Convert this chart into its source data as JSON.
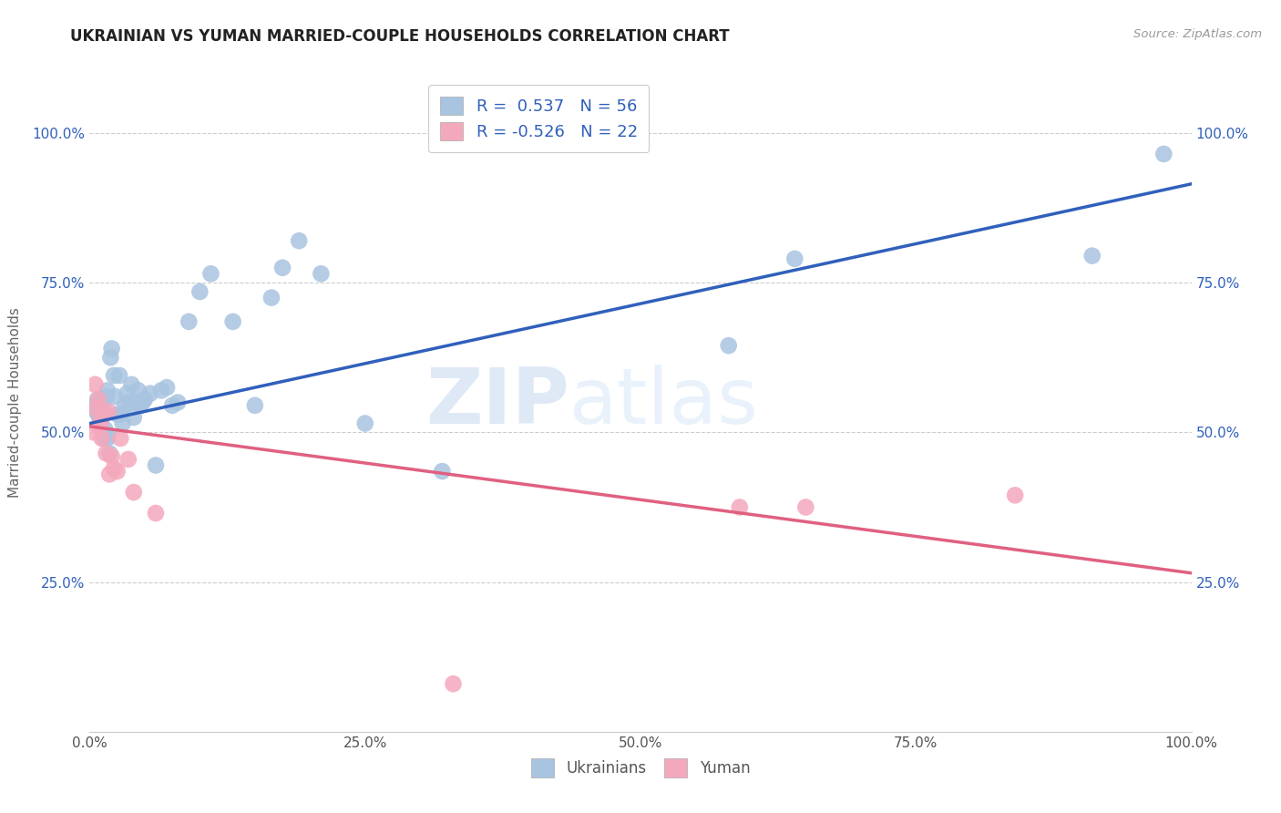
{
  "title": "UKRAINIAN VS YUMAN MARRIED-COUPLE HOUSEHOLDS CORRELATION CHART",
  "source": "Source: ZipAtlas.com",
  "ylabel": "Married-couple Households",
  "watermark_part1": "ZIP",
  "watermark_part2": "atlas",
  "R_ukrainian": 0.537,
  "N_ukrainian": 56,
  "R_yuman": -0.526,
  "N_yuman": 22,
  "xlim": [
    0.0,
    1.0
  ],
  "ylim": [
    0.0,
    1.1
  ],
  "yticks": [
    0.25,
    0.5,
    0.75,
    1.0
  ],
  "ytick_labels": [
    "25.0%",
    "50.0%",
    "75.0%",
    "100.0%"
  ],
  "xticks": [
    0.0,
    0.25,
    0.5,
    0.75,
    1.0
  ],
  "xtick_labels": [
    "0.0%",
    "25.0%",
    "50.0%",
    "75.0%",
    "100.0%"
  ],
  "background_color": "#ffffff",
  "ukrainian_color": "#a8c4e0",
  "yuman_color": "#f4a8bc",
  "line_ukrainian_color": "#3060bb",
  "line_yuman_color": "#e06080",
  "grid_color": "#cccccc",
  "title_color": "#222222",
  "ukrainians_x": [
    0.003,
    0.005,
    0.006,
    0.007,
    0.008,
    0.009,
    0.01,
    0.01,
    0.011,
    0.012,
    0.013,
    0.014,
    0.015,
    0.016,
    0.016,
    0.017,
    0.018,
    0.019,
    0.02,
    0.022,
    0.023,
    0.025,
    0.027,
    0.028,
    0.03,
    0.032,
    0.034,
    0.036,
    0.038,
    0.04,
    0.042,
    0.044,
    0.046,
    0.048,
    0.05,
    0.055,
    0.06,
    0.065,
    0.07,
    0.075,
    0.08,
    0.09,
    0.1,
    0.11,
    0.13,
    0.15,
    0.165,
    0.175,
    0.19,
    0.21,
    0.25,
    0.32,
    0.58,
    0.64,
    0.91,
    0.975
  ],
  "ukrainians_y": [
    0.54,
    0.545,
    0.535,
    0.555,
    0.53,
    0.525,
    0.535,
    0.515,
    0.525,
    0.545,
    0.49,
    0.505,
    0.56,
    0.57,
    0.49,
    0.495,
    0.465,
    0.625,
    0.64,
    0.595,
    0.56,
    0.53,
    0.595,
    0.53,
    0.515,
    0.545,
    0.565,
    0.55,
    0.58,
    0.525,
    0.55,
    0.57,
    0.545,
    0.55,
    0.555,
    0.565,
    0.445,
    0.57,
    0.575,
    0.545,
    0.55,
    0.685,
    0.735,
    0.765,
    0.685,
    0.545,
    0.725,
    0.775,
    0.82,
    0.765,
    0.515,
    0.435,
    0.645,
    0.79,
    0.795,
    0.965
  ],
  "yuman_x": [
    0.004,
    0.005,
    0.006,
    0.008,
    0.009,
    0.01,
    0.011,
    0.013,
    0.015,
    0.017,
    0.018,
    0.02,
    0.022,
    0.025,
    0.028,
    0.035,
    0.04,
    0.06,
    0.33,
    0.59,
    0.65,
    0.84
  ],
  "yuman_y": [
    0.5,
    0.58,
    0.54,
    0.555,
    0.51,
    0.52,
    0.49,
    0.53,
    0.465,
    0.535,
    0.43,
    0.46,
    0.44,
    0.435,
    0.49,
    0.455,
    0.4,
    0.365,
    0.08,
    0.375,
    0.375,
    0.395
  ],
  "line_ukr_x0": 0.0,
  "line_ukr_x1": 1.0,
  "line_ukr_y0": 0.515,
  "line_ukr_y1": 0.915,
  "line_yum_x0": 0.0,
  "line_yum_x1": 1.0,
  "line_yum_y0": 0.51,
  "line_yum_y1": 0.265
}
